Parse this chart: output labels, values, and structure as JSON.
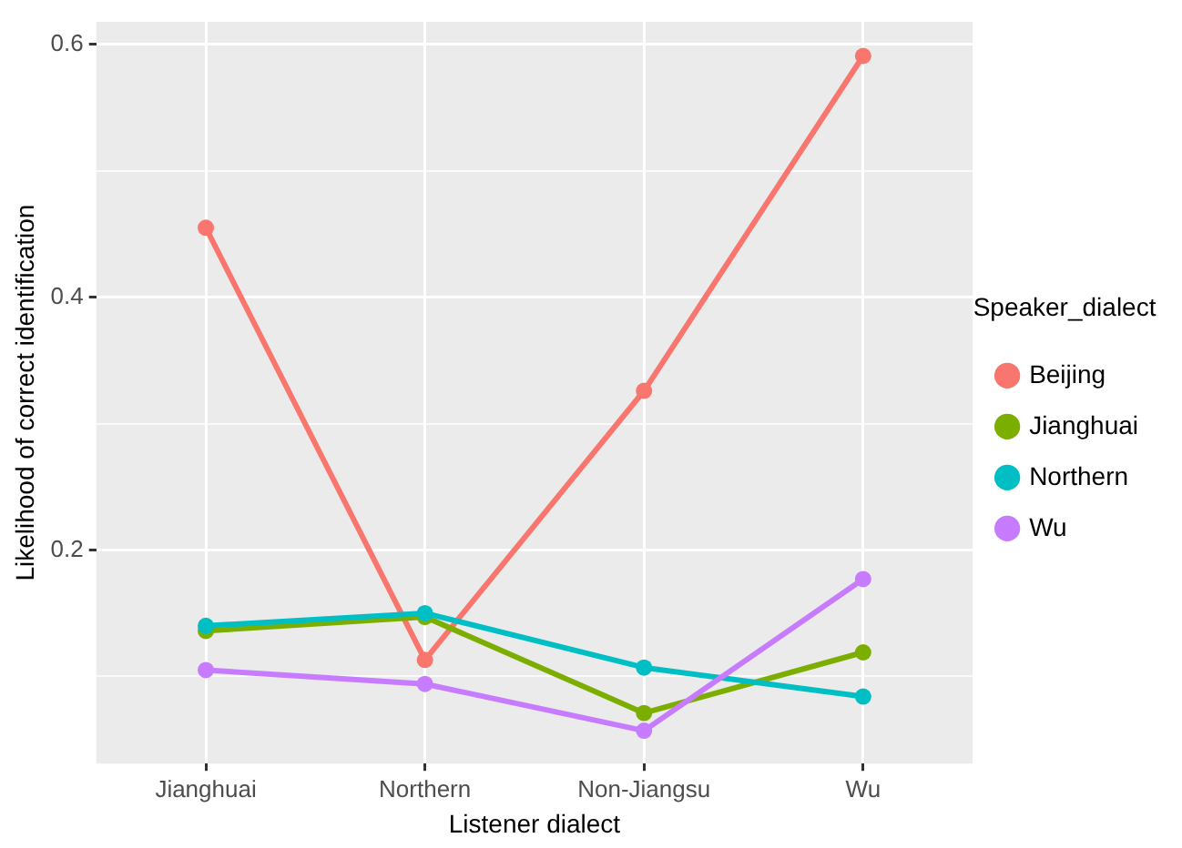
{
  "chart_data": {
    "type": "line",
    "xlabel": "Listener dialect",
    "ylabel": "Likelihood of correct identification",
    "legend_title": "Speaker_dialect",
    "categories": [
      "Jianghuai",
      "Northern",
      "Non-Jiangsu",
      "Wu"
    ],
    "series": [
      {
        "name": "Beijing",
        "color": "#f8766d",
        "values": [
          0.455,
          0.113,
          0.326,
          0.591
        ]
      },
      {
        "name": "Jianghuai",
        "color": "#7cae00",
        "values": [
          0.136,
          0.147,
          0.071,
          0.119
        ]
      },
      {
        "name": "Northern",
        "color": "#00bfc4",
        "values": [
          0.14,
          0.15,
          0.107,
          0.084
        ]
      },
      {
        "name": "Wu",
        "color": "#c77cff",
        "values": [
          0.105,
          0.094,
          0.057,
          0.177
        ]
      }
    ],
    "ylim": [
      0.031,
      0.618
    ],
    "yticks": [
      {
        "value": 0.1,
        "label": null
      },
      0.2,
      {
        "value": 0.3,
        "label": null
      },
      0.4,
      {
        "value": 0.5,
        "label": null
      },
      0.6
    ],
    "grid": true,
    "legend": "right",
    "marker": "circle",
    "line_style": "solid"
  }
}
